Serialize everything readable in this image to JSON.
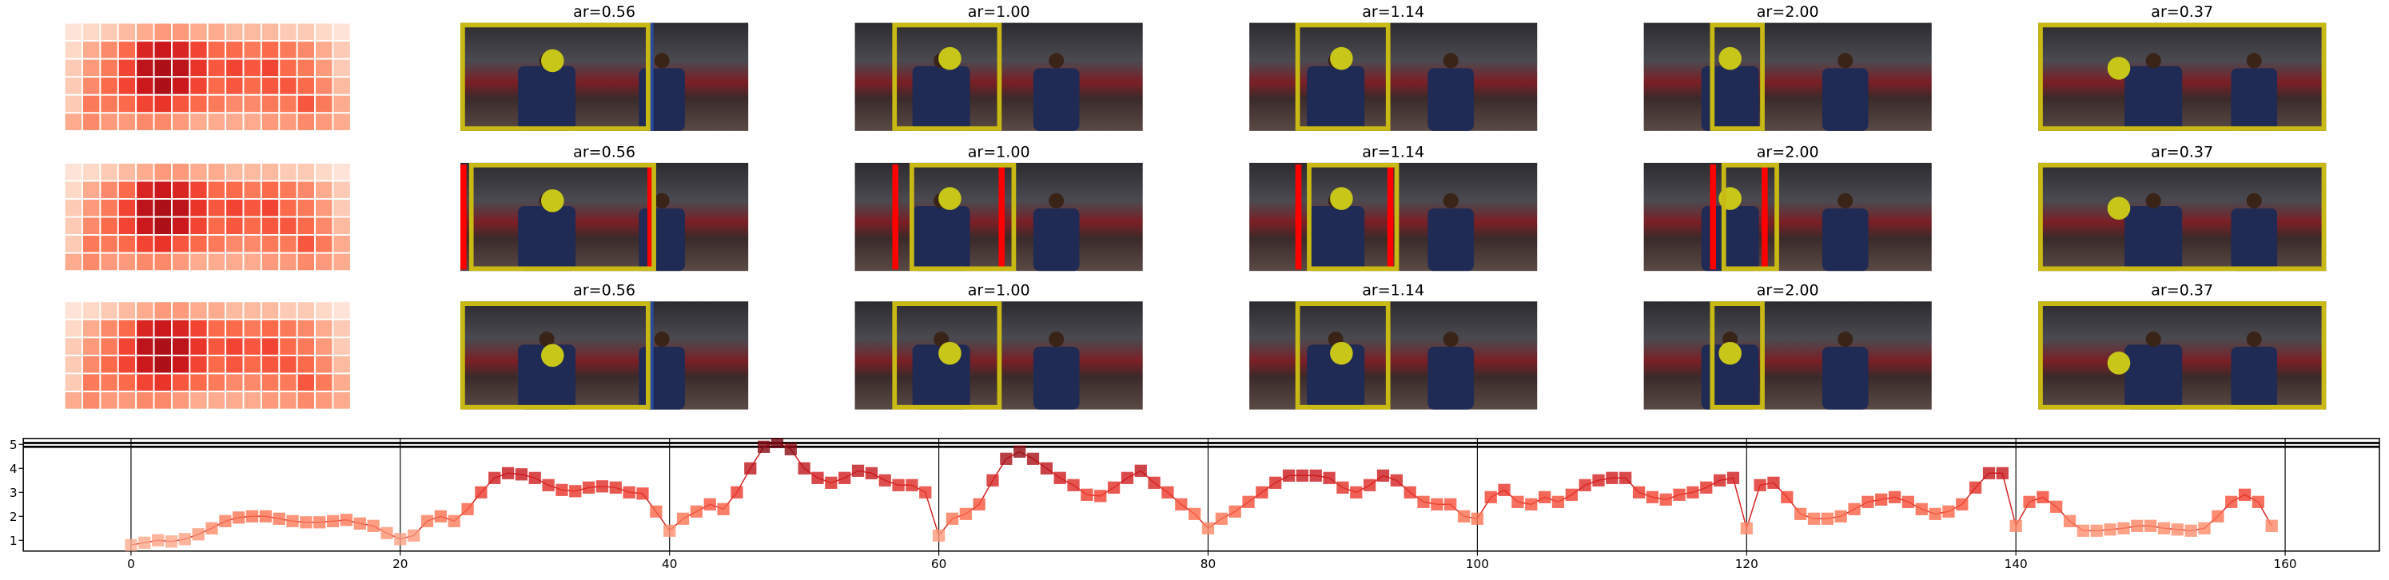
{
  "panels": {
    "titles": [
      [
        "ar=0.56",
        "ar=1.00",
        "ar=1.14",
        "ar=2.00",
        "ar=0.37"
      ],
      [
        "ar=0.56",
        "ar=1.00",
        "ar=1.14",
        "ar=2.00",
        "ar=0.37"
      ],
      [
        "ar=0.56",
        "ar=1.00",
        "ar=1.14",
        "ar=2.00",
        "ar=0.37"
      ]
    ]
  },
  "heatmap": [
    [
      0.1,
      0.15,
      0.2,
      0.25,
      0.3,
      0.35,
      0.35,
      0.3,
      0.3,
      0.25,
      0.25,
      0.25,
      0.2,
      0.2,
      0.15,
      0.1
    ],
    [
      0.15,
      0.3,
      0.4,
      0.5,
      0.7,
      0.75,
      0.7,
      0.6,
      0.5,
      0.5,
      0.45,
      0.5,
      0.45,
      0.4,
      0.3,
      0.2
    ],
    [
      0.2,
      0.35,
      0.45,
      0.6,
      0.8,
      0.85,
      0.8,
      0.65,
      0.55,
      0.6,
      0.55,
      0.6,
      0.5,
      0.45,
      0.35,
      0.2
    ],
    [
      0.2,
      0.4,
      0.5,
      0.6,
      0.75,
      0.85,
      0.75,
      0.6,
      0.5,
      0.55,
      0.5,
      0.55,
      0.55,
      0.5,
      0.4,
      0.25
    ],
    [
      0.2,
      0.45,
      0.45,
      0.5,
      0.6,
      0.65,
      0.55,
      0.5,
      0.45,
      0.4,
      0.4,
      0.45,
      0.45,
      0.55,
      0.45,
      0.3
    ],
    [
      0.3,
      0.4,
      0.35,
      0.35,
      0.4,
      0.4,
      0.35,
      0.3,
      0.3,
      0.3,
      0.3,
      0.35,
      0.35,
      0.4,
      0.35,
      0.3
    ]
  ],
  "chart_data": {
    "type": "line",
    "x": [
      0,
      1,
      2,
      3,
      4,
      5,
      6,
      7,
      8,
      9,
      10,
      11,
      12,
      13,
      14,
      15,
      16,
      17,
      18,
      19,
      20,
      21,
      22,
      23,
      24,
      25,
      26,
      27,
      28,
      29,
      30,
      31,
      32,
      33,
      34,
      35,
      36,
      37,
      38,
      39,
      40,
      41,
      42,
      43,
      44,
      45,
      46,
      47,
      48,
      49,
      50,
      51,
      52,
      53,
      54,
      55,
      56,
      57,
      58,
      59,
      60,
      61,
      62,
      63,
      64,
      65,
      66,
      67,
      68,
      69,
      70,
      71,
      72,
      73,
      74,
      75,
      76,
      77,
      78,
      79,
      80,
      81,
      82,
      83,
      84,
      85,
      86,
      87,
      88,
      89,
      90,
      91,
      92,
      93,
      94,
      95,
      96,
      97,
      98,
      99,
      100,
      101,
      102,
      103,
      104,
      105,
      106,
      107,
      108,
      109,
      110,
      111,
      112,
      113,
      114,
      115,
      116,
      117,
      118,
      119,
      120,
      121,
      122,
      123,
      124,
      125,
      126,
      127,
      128,
      129,
      130,
      131,
      132,
      133,
      134,
      135,
      136,
      137,
      138,
      139,
      140,
      141,
      142,
      143,
      144,
      145,
      146,
      147,
      148,
      149,
      150,
      151,
      152,
      153,
      154,
      155,
      156,
      157,
      158,
      159
    ],
    "series": [
      {
        "color": "#d62728",
        "values": [
          0.8,
          0.9,
          1.0,
          0.95,
          1.05,
          1.25,
          1.5,
          1.8,
          1.95,
          2.0,
          2.0,
          1.9,
          1.8,
          1.75,
          1.75,
          1.8,
          1.85,
          1.7,
          1.6,
          1.3,
          1.05,
          1.2,
          1.8,
          2.0,
          1.8,
          2.3,
          3.0,
          3.6,
          3.8,
          3.75,
          3.6,
          3.3,
          3.1,
          3.05,
          3.2,
          3.25,
          3.2,
          3.0,
          2.95,
          2.2,
          1.4,
          1.9,
          2.2,
          2.5,
          2.3,
          3.0,
          4.0,
          4.9,
          5.1,
          4.8,
          4.0,
          3.6,
          3.4,
          3.6,
          3.9,
          3.8,
          3.5,
          3.3,
          3.3,
          3.0,
          1.2,
          1.9,
          2.1,
          2.5,
          3.5,
          4.4,
          4.7,
          4.4,
          4.0,
          3.6,
          3.3,
          2.9,
          2.85,
          3.2,
          3.6,
          3.9,
          3.4,
          3.0,
          2.5,
          2.1,
          1.5,
          1.9,
          2.2,
          2.6,
          3.0,
          3.4,
          3.7,
          3.7,
          3.7,
          3.6,
          3.2,
          3.0,
          3.3,
          3.7,
          3.5,
          3.0,
          2.6,
          2.5,
          2.5,
          2.0,
          1.9,
          2.8,
          3.1,
          2.6,
          2.5,
          2.8,
          2.6,
          2.9,
          3.3,
          3.5,
          3.6,
          3.6,
          3.0,
          2.8,
          2.7,
          2.9,
          3.0,
          3.2,
          3.5,
          3.6,
          1.5,
          3.3,
          3.4,
          2.8,
          2.1,
          1.9,
          1.9,
          2.0,
          2.3,
          2.6,
          2.7,
          2.8,
          2.6,
          2.3,
          2.1,
          2.2,
          2.5,
          3.2,
          3.8,
          3.8,
          1.6,
          2.6,
          2.8,
          2.4,
          1.8,
          1.4,
          1.4,
          1.45,
          1.5,
          1.6,
          1.6,
          1.5,
          1.45,
          1.4,
          1.5,
          2.0,
          2.6,
          2.9,
          2.6,
          1.6
        ]
      }
    ],
    "xlim": [
      -8,
      167
    ],
    "ylim": [
      0.55,
      5.25
    ],
    "xticks": [
      0,
      20,
      40,
      60,
      80,
      100,
      120,
      140,
      160
    ],
    "yticks": [
      1,
      2,
      3,
      4,
      5
    ],
    "grid": "x"
  }
}
